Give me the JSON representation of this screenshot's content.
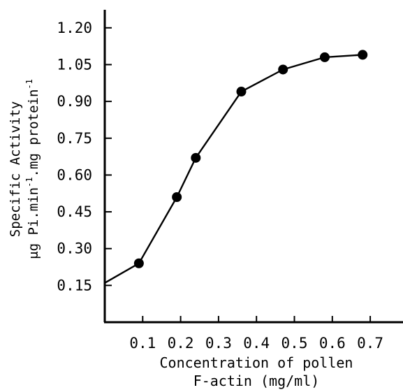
{
  "chart_data": {
    "type": "line",
    "title": "",
    "xlabel": {
      "line1": "Concentration of pollen",
      "line2": "F-actin (mg/ml)"
    },
    "ylabel": {
      "line1": "Specific Activity",
      "line2_prefix": "μg Pi.min",
      "line2_sup1": "-1",
      "line2_mid": ".mg protein",
      "line2_sup2": "-1"
    },
    "x_ticks": [
      "0.1",
      "0.2",
      "0.3",
      "0.4",
      "0.5",
      "0.6",
      "0.7"
    ],
    "y_ticks": [
      "1.20",
      "1.05",
      "0.90",
      "0.75",
      "0.60",
      "0.45",
      "0.30",
      "0.15"
    ],
    "xlim": [
      0,
      0.8
    ],
    "ylim": [
      0.0,
      1.26
    ],
    "grid": false,
    "series": [
      {
        "x": [
          0.09,
          0.19,
          0.24,
          0.36,
          0.47,
          0.58,
          0.68
        ],
        "y": [
          0.24,
          0.51,
          0.67,
          0.94,
          1.03,
          1.08,
          1.09
        ]
      }
    ],
    "line_start": {
      "x": 0.0,
      "y": 0.16
    }
  }
}
